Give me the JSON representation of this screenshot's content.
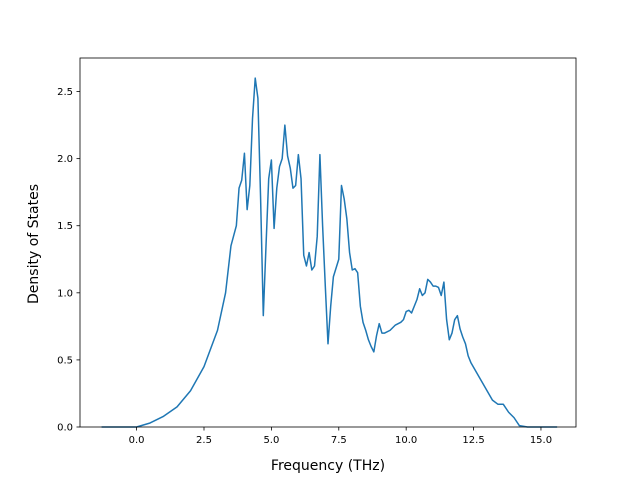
{
  "chart_data": {
    "type": "line",
    "title": "",
    "xlabel": "Frequency (THz)",
    "ylabel": "Density of States",
    "xlim": [
      -2.1,
      16.3
    ],
    "ylim": [
      0,
      2.75
    ],
    "x_ticks": [
      0.0,
      2.5,
      5.0,
      7.5,
      10.0,
      12.5,
      15.0
    ],
    "x_tick_labels": [
      "0.0",
      "2.5",
      "5.0",
      "7.5",
      "10.0",
      "12.5",
      "15.0"
    ],
    "y_ticks": [
      0.0,
      0.5,
      1.0,
      1.5,
      2.0,
      2.5
    ],
    "y_tick_labels": [
      "0.0",
      "0.5",
      "1.0",
      "1.5",
      "2.0",
      "2.5"
    ],
    "grid": false,
    "legend": "none",
    "series": [
      {
        "color": "#1f77b4",
        "x": [
          -1.3,
          -0.5,
          0.0,
          0.5,
          1.0,
          1.5,
          2.0,
          2.5,
          3.0,
          3.3,
          3.5,
          3.7,
          3.8,
          3.9,
          4.0,
          4.1,
          4.2,
          4.3,
          4.4,
          4.5,
          4.6,
          4.7,
          4.8,
          4.9,
          5.0,
          5.1,
          5.2,
          5.3,
          5.4,
          5.5,
          5.6,
          5.7,
          5.8,
          5.9,
          6.0,
          6.1,
          6.2,
          6.3,
          6.4,
          6.5,
          6.6,
          6.7,
          6.8,
          6.9,
          7.0,
          7.1,
          7.2,
          7.3,
          7.5,
          7.6,
          7.7,
          7.8,
          7.9,
          8.0,
          8.1,
          8.2,
          8.3,
          8.4,
          8.5,
          8.6,
          8.7,
          8.8,
          8.9,
          9.0,
          9.1,
          9.2,
          9.4,
          9.6,
          9.8,
          9.9,
          10.0,
          10.1,
          10.2,
          10.3,
          10.4,
          10.5,
          10.6,
          10.7,
          10.8,
          10.9,
          11.0,
          11.1,
          11.2,
          11.3,
          11.4,
          11.5,
          11.6,
          11.7,
          11.8,
          11.9,
          12.0,
          12.1,
          12.2,
          12.3,
          12.4,
          12.6,
          12.8,
          13.0,
          13.2,
          13.4,
          13.6,
          13.8,
          14.0,
          14.2,
          14.5,
          15.0,
          15.6
        ],
        "values": [
          0.0,
          0.0,
          0.0,
          0.03,
          0.08,
          0.15,
          0.27,
          0.45,
          0.72,
          1.0,
          1.35,
          1.5,
          1.78,
          1.84,
          2.04,
          1.62,
          1.8,
          2.3,
          2.6,
          2.45,
          1.7,
          0.83,
          1.35,
          1.85,
          1.99,
          1.48,
          1.78,
          1.94,
          2.0,
          2.25,
          2.02,
          1.93,
          1.78,
          1.8,
          2.03,
          1.85,
          1.28,
          1.2,
          1.3,
          1.17,
          1.2,
          1.42,
          2.03,
          1.5,
          1.05,
          0.62,
          0.9,
          1.12,
          1.25,
          1.8,
          1.7,
          1.55,
          1.3,
          1.17,
          1.18,
          1.15,
          0.9,
          0.78,
          0.72,
          0.65,
          0.6,
          0.56,
          0.68,
          0.77,
          0.7,
          0.7,
          0.72,
          0.76,
          0.78,
          0.8,
          0.86,
          0.87,
          0.85,
          0.9,
          0.95,
          1.03,
          0.98,
          1.0,
          1.1,
          1.08,
          1.05,
          1.05,
          1.04,
          0.98,
          1.08,
          0.8,
          0.65,
          0.7,
          0.8,
          0.83,
          0.73,
          0.67,
          0.62,
          0.53,
          0.48,
          0.41,
          0.34,
          0.27,
          0.2,
          0.17,
          0.17,
          0.11,
          0.07,
          0.01,
          0.0,
          0.0,
          0.0
        ]
      }
    ]
  }
}
